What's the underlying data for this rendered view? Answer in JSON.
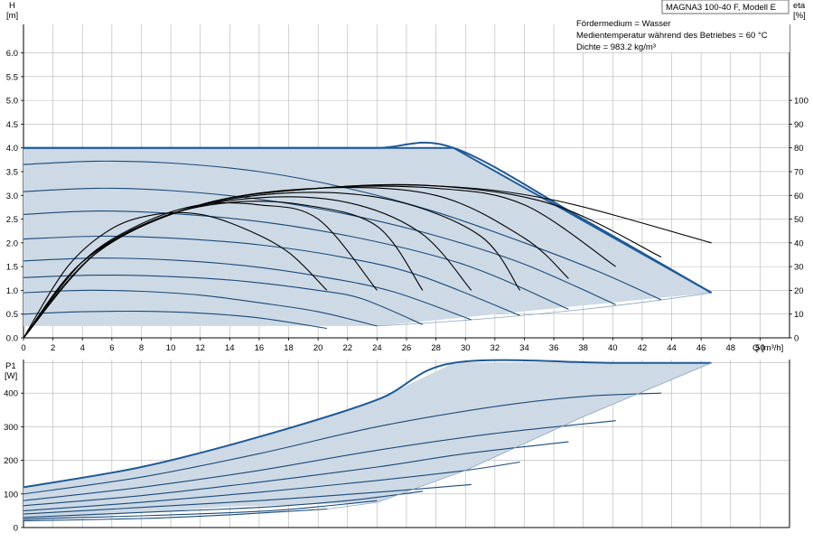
{
  "info_box": {
    "title": "MAGNA3 100-40 F, Modell E",
    "lines": [
      "Fördermedium = Wasser",
      "Medientemperatur während des Betriebes = 60 °C",
      "Dichte = 983.2 kg/m³"
    ]
  },
  "colors": {
    "fill": "#cdd9e5",
    "curve": "#1a4a7a",
    "boundary": "#1f5a96",
    "efficiency": "#000000",
    "grid": "#b4b4b4"
  },
  "chart_data": [
    {
      "type": "line",
      "name": "H",
      "ylabel": "H",
      "yunit": "[m]",
      "xlabel": "Q [m³/h]",
      "xlim": [
        0,
        52
      ],
      "xticks": [
        0,
        2,
        4,
        6,
        8,
        10,
        12,
        14,
        16,
        18,
        20,
        22,
        24,
        26,
        28,
        30,
        32,
        34,
        36,
        38,
        40,
        42,
        44,
        46,
        48,
        50
      ],
      "ylim": [
        0,
        6.6
      ],
      "yticks": [
        "0.0",
        "0.5",
        "1.0",
        "1.5",
        "2.0",
        "2.5",
        "3.0",
        "3.5",
        "4.0",
        "4.5",
        "5.0",
        "5.5",
        "6.0"
      ],
      "y2label": "eta",
      "y2unit": "[%]",
      "y2lim": [
        0,
        132
      ],
      "y2ticks": [
        0,
        10,
        20,
        30,
        40,
        50,
        60,
        70,
        80,
        90,
        100
      ],
      "grid": true,
      "envelope": [
        [
          0,
          4.0
        ],
        [
          29.2,
          4.0
        ],
        [
          46.7,
          0.95
        ],
        [
          24.0,
          0.25
        ],
        [
          0,
          0.25
        ]
      ],
      "speed_curves": [
        [
          [
            0,
            4.0
          ],
          [
            6,
            4.0
          ],
          [
            12,
            4.0
          ],
          [
            18,
            4.0
          ],
          [
            24,
            4.0
          ],
          [
            29.2,
            4.0
          ],
          [
            38,
            2.5
          ],
          [
            46.7,
            0.95
          ]
        ],
        [
          [
            0,
            3.65
          ],
          [
            5,
            3.72
          ],
          [
            10,
            3.68
          ],
          [
            16,
            3.5
          ],
          [
            22,
            3.15
          ],
          [
            28,
            2.65
          ],
          [
            34,
            2.0
          ],
          [
            39,
            1.4
          ],
          [
            43.3,
            0.8
          ]
        ],
        [
          [
            0,
            3.08
          ],
          [
            5,
            3.15
          ],
          [
            10,
            3.1
          ],
          [
            16,
            2.92
          ],
          [
            22,
            2.6
          ],
          [
            28,
            2.15
          ],
          [
            34,
            1.55
          ],
          [
            40.2,
            0.7
          ]
        ],
        [
          [
            0,
            2.6
          ],
          [
            5,
            2.67
          ],
          [
            10,
            2.62
          ],
          [
            16,
            2.45
          ],
          [
            22,
            2.15
          ],
          [
            28,
            1.72
          ],
          [
            32,
            1.3
          ],
          [
            37,
            0.6
          ]
        ],
        [
          [
            0,
            2.08
          ],
          [
            5,
            2.14
          ],
          [
            10,
            2.1
          ],
          [
            16,
            1.96
          ],
          [
            22,
            1.68
          ],
          [
            27,
            1.3
          ],
          [
            33.7,
            0.47
          ]
        ],
        [
          [
            0,
            1.62
          ],
          [
            5,
            1.68
          ],
          [
            10,
            1.64
          ],
          [
            15,
            1.52
          ],
          [
            20,
            1.3
          ],
          [
            25,
            0.98
          ],
          [
            30.4,
            0.38
          ]
        ],
        [
          [
            0,
            1.27
          ],
          [
            5,
            1.32
          ],
          [
            10,
            1.29
          ],
          [
            15,
            1.19
          ],
          [
            20,
            1.0
          ],
          [
            23,
            0.82
          ],
          [
            27.1,
            0.28
          ]
        ],
        [
          [
            0,
            0.95
          ],
          [
            4,
            1.0
          ],
          [
            8,
            0.98
          ],
          [
            12,
            0.9
          ],
          [
            16,
            0.74
          ],
          [
            20,
            0.55
          ],
          [
            24,
            0.25
          ]
        ],
        [
          [
            0,
            0.5
          ],
          [
            4,
            0.55
          ],
          [
            8,
            0.56
          ],
          [
            12,
            0.52
          ],
          [
            16,
            0.42
          ],
          [
            20.6,
            0.2
          ]
        ]
      ],
      "efficiency_curves": [
        [
          [
            0,
            0
          ],
          [
            3,
            30
          ],
          [
            6,
            46
          ],
          [
            9,
            52
          ],
          [
            12,
            52
          ],
          [
            15,
            46
          ],
          [
            18,
            36
          ],
          [
            20.6,
            20
          ]
        ],
        [
          [
            0,
            0
          ],
          [
            4,
            32
          ],
          [
            8,
            48
          ],
          [
            12,
            56
          ],
          [
            16,
            56
          ],
          [
            20,
            50
          ],
          [
            24,
            20
          ]
        ],
        [
          [
            0,
            0
          ],
          [
            4,
            32
          ],
          [
            9,
            50
          ],
          [
            14,
            57
          ],
          [
            19,
            56
          ],
          [
            24,
            47
          ],
          [
            27.1,
            20
          ]
        ],
        [
          [
            0,
            0
          ],
          [
            4,
            32
          ],
          [
            10,
            52
          ],
          [
            16,
            59
          ],
          [
            22,
            57
          ],
          [
            27,
            44
          ],
          [
            30.4,
            20
          ]
        ],
        [
          [
            0,
            0
          ],
          [
            5,
            36
          ],
          [
            11,
            54
          ],
          [
            18,
            61
          ],
          [
            25,
            58
          ],
          [
            31,
            43
          ],
          [
            33.7,
            20
          ]
        ],
        [
          [
            0,
            0
          ],
          [
            5,
            36
          ],
          [
            12,
            56
          ],
          [
            20,
            63
          ],
          [
            28,
            60
          ],
          [
            34,
            42
          ],
          [
            37,
            25
          ]
        ],
        [
          [
            0,
            0
          ],
          [
            5,
            36
          ],
          [
            12,
            56
          ],
          [
            20,
            63
          ],
          [
            28,
            63
          ],
          [
            34,
            56
          ],
          [
            40.2,
            30
          ]
        ],
        [
          [
            0,
            0
          ],
          [
            5,
            36
          ],
          [
            12,
            56
          ],
          [
            20,
            63
          ],
          [
            28,
            64
          ],
          [
            36,
            56
          ],
          [
            43.3,
            34
          ]
        ],
        [
          [
            0,
            0
          ],
          [
            5,
            36
          ],
          [
            12,
            56
          ],
          [
            20,
            63
          ],
          [
            28,
            64
          ],
          [
            36,
            58
          ],
          [
            46.7,
            40
          ]
        ]
      ]
    },
    {
      "type": "line",
      "name": "P1",
      "ylabel": "P1",
      "yunit": "[W]",
      "xlim": [
        0,
        52
      ],
      "ylim": [
        0,
        500
      ],
      "yticks": [
        0,
        100,
        200,
        300,
        400
      ],
      "grid": true,
      "envelope": [
        [
          0,
          120
        ],
        [
          10,
          200
        ],
        [
          20,
          300
        ],
        [
          29.2,
          490
        ],
        [
          46.7,
          490
        ],
        [
          24,
          60
        ],
        [
          0,
          20
        ]
      ],
      "speed_curves": [
        [
          [
            0,
            120
          ],
          [
            8,
            180
          ],
          [
            16,
            270
          ],
          [
            24,
            380
          ],
          [
            29.2,
            490
          ],
          [
            40,
            490
          ],
          [
            46.7,
            490
          ]
        ],
        [
          [
            0,
            100
          ],
          [
            8,
            150
          ],
          [
            16,
            220
          ],
          [
            24,
            300
          ],
          [
            32,
            360
          ],
          [
            38,
            390
          ],
          [
            43.3,
            400
          ]
        ],
        [
          [
            0,
            80
          ],
          [
            8,
            120
          ],
          [
            16,
            170
          ],
          [
            24,
            230
          ],
          [
            32,
            280
          ],
          [
            40.2,
            318
          ]
        ],
        [
          [
            0,
            65
          ],
          [
            8,
            95
          ],
          [
            16,
            135
          ],
          [
            24,
            180
          ],
          [
            30,
            220
          ],
          [
            37,
            255
          ]
        ],
        [
          [
            0,
            50
          ],
          [
            8,
            75
          ],
          [
            16,
            105
          ],
          [
            24,
            140
          ],
          [
            30,
            170
          ],
          [
            33.7,
            195
          ]
        ],
        [
          [
            0,
            40
          ],
          [
            8,
            60
          ],
          [
            16,
            80
          ],
          [
            24,
            105
          ],
          [
            30.4,
            128
          ]
        ],
        [
          [
            0,
            30
          ],
          [
            8,
            45
          ],
          [
            16,
            60
          ],
          [
            22,
            80
          ],
          [
            27.1,
            108
          ]
        ],
        [
          [
            0,
            25
          ],
          [
            8,
            35
          ],
          [
            16,
            48
          ],
          [
            20,
            62
          ],
          [
            24,
            80
          ]
        ],
        [
          [
            0,
            20
          ],
          [
            8,
            27
          ],
          [
            14,
            38
          ],
          [
            20.6,
            55
          ]
        ]
      ]
    }
  ]
}
